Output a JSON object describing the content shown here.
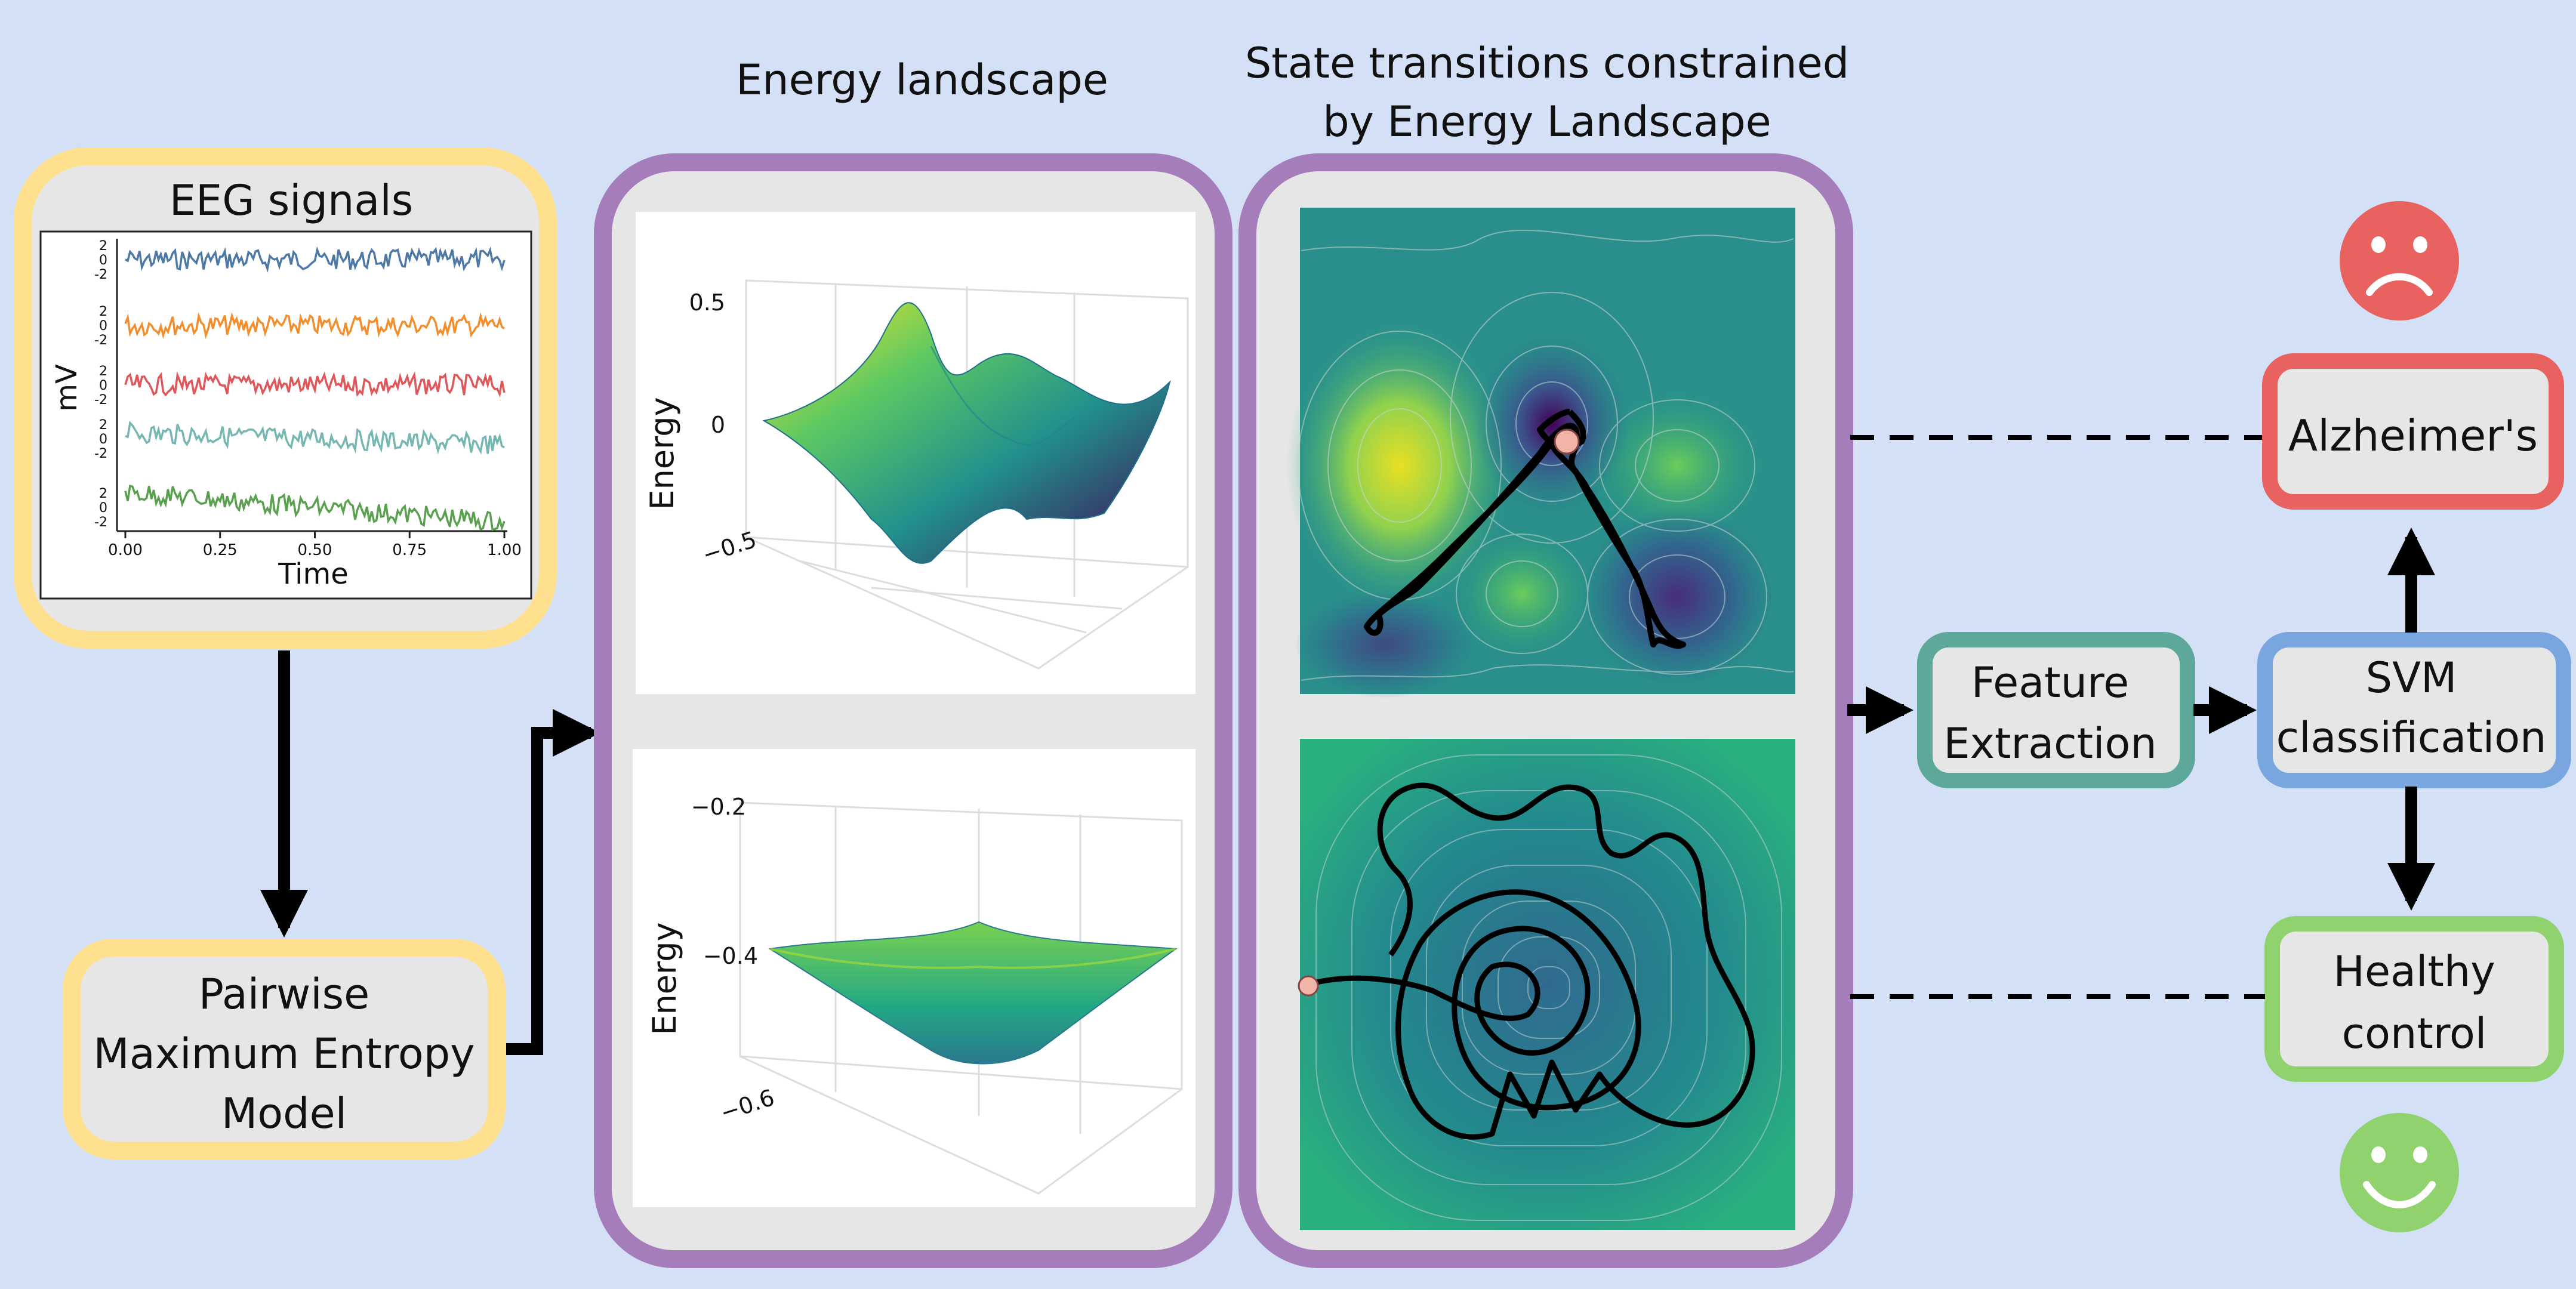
{
  "headings": {
    "energy_landscape": "Energy landscape",
    "transitions_line1": "State transitions constrained",
    "transitions_line2": "by Energy Landscape"
  },
  "eeg": {
    "title": "EEG signals",
    "ylabel": "mV",
    "xlabel": "Time",
    "xticks": [
      "0.00",
      "0.25",
      "0.50",
      "0.75",
      "1.00"
    ],
    "channel_ticks": [
      "2",
      "0",
      "-2"
    ],
    "channel_colors": [
      "#4e79a7",
      "#f28e2b",
      "#e15759",
      "#76b7b2",
      "#59a14f"
    ]
  },
  "model_box": {
    "line1": "Pairwise",
    "line2": "Maximum Entropy",
    "line3": "Model"
  },
  "landscape_top": {
    "ylabel": "Energy",
    "ticks": [
      "0.5",
      "0",
      "−0.5"
    ]
  },
  "landscape_bottom": {
    "ylabel": "Energy",
    "ticks": [
      "−0.2",
      "−0.4",
      "−0.6"
    ]
  },
  "feature_box": {
    "line1": "Feature",
    "line2": "Extraction"
  },
  "svm_box": {
    "line1": "SVM",
    "line2": "classification"
  },
  "alz_box": {
    "label": "Alzheimer's"
  },
  "healthy_box": {
    "line1": "Healthy",
    "line2": "control"
  },
  "colors": {
    "background": "#d3e0f5",
    "yellow_border": "#ffe08f",
    "purple_border": "#a57dbb",
    "teal_border": "#5ea79b",
    "blue_border": "#7aa6e0",
    "red_border": "#e8635f",
    "green_border": "#90d26d",
    "box_fill": "#e6e6e6",
    "sad_face": "#e8635f",
    "happy_face": "#90d26d"
  }
}
